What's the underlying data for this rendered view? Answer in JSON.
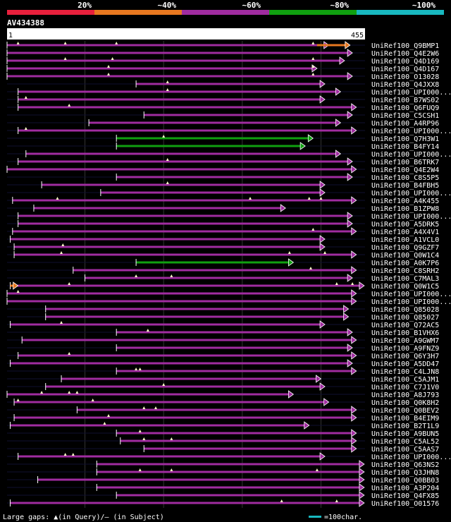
{
  "chart_data": {
    "type": "alignment-map",
    "query_name": "AV434388",
    "query_length": 455,
    "ruler": {
      "start_label": "1",
      "end_label": "455"
    },
    "identity_legend": [
      {
        "label": "20%",
        "color": "#e8203c"
      },
      {
        "label": "~40%",
        "color": "#e87820"
      },
      {
        "label": "~60%",
        "color": "#a02ca0"
      },
      {
        "label": "~80%",
        "color": "#10a010"
      },
      {
        "label": "~100%",
        "color": "#18b8c0"
      }
    ],
    "footer": {
      "gaps_text": "Large gaps: ▲(in Query)/– (in Subject)",
      "scale_text": "=100char.",
      "scale_color": "#18b8c0"
    },
    "hits": [
      {
        "name": "UniRef100_Q9BMP1",
        "start": 1,
        "end": 410,
        "color": "#a02ca0",
        "extra": {
          "start": 395,
          "end": 437,
          "color": "#e87820"
        },
        "marks": [
          15,
          75,
          140,
          390
        ]
      },
      {
        "name": "UniRef100_Q4E2W6",
        "start": 1,
        "end": 440,
        "color": "#a02ca0",
        "marks": []
      },
      {
        "name": "UniRef100_Q4D169",
        "start": 1,
        "end": 430,
        "color": "#a02ca0",
        "marks": [
          75,
          135,
          390
        ]
      },
      {
        "name": "UniRef100_Q4D167",
        "start": 1,
        "end": 395,
        "color": "#a02ca0",
        "marks": [
          130,
          390
        ]
      },
      {
        "name": "UniRef100_O13028",
        "start": 1,
        "end": 440,
        "color": "#a02ca0",
        "marks": [
          130,
          390
        ]
      },
      {
        "name": "UniRef100_Q4JXX8",
        "start": 165,
        "end": 405,
        "color": "#a02ca0",
        "marks": [
          205
        ]
      },
      {
        "name": "UniRef100_UPI000...",
        "start": 15,
        "end": 425,
        "color": "#a02ca0",
        "marks": [
          205
        ]
      },
      {
        "name": "UniRef100_B7WS02",
        "start": 15,
        "end": 405,
        "color": "#a02ca0",
        "marks": [
          25
        ]
      },
      {
        "name": "UniRef100_Q6FUQ9",
        "start": 15,
        "end": 445,
        "color": "#a02ca0",
        "marks": [
          80
        ]
      },
      {
        "name": "UniRef100_C5CSH1",
        "start": 175,
        "end": 440,
        "color": "#a02ca0",
        "marks": []
      },
      {
        "name": "UniRef100_A4RP96",
        "start": 105,
        "end": 425,
        "color": "#a02ca0",
        "marks": []
      },
      {
        "name": "UniRef100_UPI000...",
        "start": 15,
        "end": 445,
        "color": "#a02ca0",
        "marks": [
          25
        ]
      },
      {
        "name": "UniRef100_Q7H3W1",
        "start": 140,
        "end": 390,
        "color": "#10a010",
        "marks": [
          200
        ]
      },
      {
        "name": "UniRef100_B4FY14",
        "start": 140,
        "end": 380,
        "color": "#10a010",
        "marks": []
      },
      {
        "name": "UniRef100_UPI000...",
        "start": 25,
        "end": 425,
        "color": "#a02ca0",
        "marks": []
      },
      {
        "name": "UniRef100_B6TRK7",
        "start": 15,
        "end": 440,
        "color": "#a02ca0",
        "marks": [
          205
        ]
      },
      {
        "name": "UniRef100_Q4E2W4",
        "start": 1,
        "end": 445,
        "color": "#a02ca0",
        "marks": []
      },
      {
        "name": "UniRef100_C8S5P5",
        "start": 140,
        "end": 440,
        "color": "#a02ca0",
        "marks": []
      },
      {
        "name": "UniRef100_B4FBH5",
        "start": 45,
        "end": 405,
        "color": "#a02ca0",
        "marks": [
          205
        ]
      },
      {
        "name": "UniRef100_UPI000...",
        "start": 120,
        "end": 405,
        "color": "#a02ca0",
        "marks": []
      },
      {
        "name": "UniRef100_A4K455",
        "start": 8,
        "end": 445,
        "color": "#a02ca0",
        "marks": [
          65,
          310,
          385,
          400
        ]
      },
      {
        "name": "UniRef100_B1ZPW8",
        "start": 35,
        "end": 355,
        "color": "#a02ca0",
        "marks": []
      },
      {
        "name": "UniRef100_UPI000...",
        "start": 15,
        "end": 440,
        "color": "#a02ca0",
        "marks": []
      },
      {
        "name": "UniRef100_A5DRK5",
        "start": 15,
        "end": 440,
        "color": "#a02ca0",
        "marks": []
      },
      {
        "name": "UniRef100_A4X4V1",
        "start": 8,
        "end": 445,
        "color": "#a02ca0",
        "marks": [
          390
        ]
      },
      {
        "name": "UniRef100_A1VCL0",
        "start": 5,
        "end": 405,
        "color": "#a02ca0",
        "marks": []
      },
      {
        "name": "UniRef100_Q9GZF7",
        "start": 10,
        "end": 405,
        "color": "#a02ca0",
        "marks": [
          72
        ]
      },
      {
        "name": "UniRef100_Q0W1C4",
        "start": 10,
        "end": 445,
        "color": "#a02ca0",
        "marks": [
          70,
          360,
          405
        ]
      },
      {
        "name": "UniRef100_A0K7P6",
        "start": 165,
        "end": 365,
        "color": "#10a010",
        "marks": []
      },
      {
        "name": "UniRef100_C8SRH2",
        "start": 85,
        "end": 445,
        "color": "#a02ca0",
        "marks": [
          387
        ]
      },
      {
        "name": "UniRef100_C7MAL3",
        "start": 100,
        "end": 440,
        "color": "#a02ca0",
        "marks": [
          165,
          210
        ]
      },
      {
        "name": "UniRef100_Q0W1C5",
        "start": 5,
        "end": 455,
        "color": "#a02ca0",
        "extra": {
          "start": 5,
          "end": 15,
          "color": "#e87820"
        },
        "marks": [
          80,
          420,
          440
        ]
      },
      {
        "name": "UniRef100_UPI000...",
        "start": 1,
        "end": 445,
        "color": "#a02ca0",
        "marks": [
          15
        ]
      },
      {
        "name": "UniRef100_UPI000...",
        "start": 1,
        "end": 445,
        "color": "#a02ca0",
        "marks": []
      },
      {
        "name": "UniRef100_Q85028",
        "start": 50,
        "end": 435,
        "color": "#a02ca0",
        "marks": []
      },
      {
        "name": "UniRef100_Q85027",
        "start": 50,
        "end": 435,
        "color": "#a02ca0",
        "marks": []
      },
      {
        "name": "UniRef100_Q72AC5",
        "start": 5,
        "end": 405,
        "color": "#a02ca0",
        "marks": [
          70
        ]
      },
      {
        "name": "UniRef100_B1VHX6",
        "start": 140,
        "end": 440,
        "color": "#a02ca0",
        "marks": [
          180
        ]
      },
      {
        "name": "UniRef100_A9GWM7",
        "start": 20,
        "end": 445,
        "color": "#a02ca0",
        "marks": []
      },
      {
        "name": "UniRef100_A9FNZ9",
        "start": 140,
        "end": 440,
        "color": "#a02ca0",
        "marks": []
      },
      {
        "name": "UniRef100_Q6Y3H7",
        "start": 15,
        "end": 445,
        "color": "#a02ca0",
        "marks": [
          80
        ]
      },
      {
        "name": "UniRef100_A5DD47",
        "start": 5,
        "end": 440,
        "color": "#a02ca0",
        "marks": []
      },
      {
        "name": "UniRef100_C4LJN8",
        "start": 140,
        "end": 445,
        "color": "#a02ca0",
        "marks": [
          165,
          170
        ]
      },
      {
        "name": "UniRef100_C5AJM1",
        "start": 70,
        "end": 400,
        "color": "#a02ca0",
        "marks": []
      },
      {
        "name": "UniRef100_C7J1V0",
        "start": 50,
        "end": 405,
        "color": "#a02ca0",
        "marks": [
          200
        ]
      },
      {
        "name": "UniRef100_A8J793",
        "start": 1,
        "end": 365,
        "color": "#a02ca0",
        "marks": [
          45,
          80,
          90
        ]
      },
      {
        "name": "UniRef100_Q0K8H2",
        "start": 10,
        "end": 410,
        "color": "#a02ca0",
        "marks": [
          15,
          110
        ]
      },
      {
        "name": "UniRef100_Q0BEV2",
        "start": 90,
        "end": 445,
        "color": "#a02ca0",
        "marks": [
          175,
          190
        ]
      },
      {
        "name": "UniRef100_B4EIM9",
        "start": 10,
        "end": 445,
        "color": "#a02ca0",
        "marks": [
          130
        ]
      },
      {
        "name": "UniRef100_B2T1L9",
        "start": 5,
        "end": 385,
        "color": "#a02ca0",
        "marks": [
          125
        ]
      },
      {
        "name": "UniRef100_A9BUN5",
        "start": 140,
        "end": 445,
        "color": "#a02ca0",
        "marks": [
          170
        ]
      },
      {
        "name": "UniRef100_C5AL52",
        "start": 145,
        "end": 445,
        "color": "#a02ca0",
        "marks": [
          175,
          210
        ]
      },
      {
        "name": "UniRef100_C5AAS7",
        "start": 175,
        "end": 445,
        "color": "#a02ca0",
        "marks": []
      },
      {
        "name": "UniRef100_UPI000...",
        "start": 15,
        "end": 405,
        "color": "#a02ca0",
        "marks": [
          75,
          85
        ]
      },
      {
        "name": "UniRef100_Q63NS2",
        "start": 115,
        "end": 455,
        "color": "#a02ca0",
        "marks": []
      },
      {
        "name": "UniRef100_Q3JHN8",
        "start": 115,
        "end": 455,
        "color": "#a02ca0",
        "marks": [
          170,
          210,
          395
        ]
      },
      {
        "name": "UniRef100_Q0BB03",
        "start": 40,
        "end": 455,
        "color": "#a02ca0",
        "marks": []
      },
      {
        "name": "UniRef100_A3P204",
        "start": 115,
        "end": 455,
        "color": "#a02ca0",
        "marks": []
      },
      {
        "name": "UniRef100_Q4FX85",
        "start": 140,
        "end": 455,
        "color": "#a02ca0",
        "marks": []
      },
      {
        "name": "UniRef100_O01576",
        "start": 5,
        "end": 455,
        "color": "#a02ca0",
        "marks": [
          350,
          420
        ]
      }
    ]
  }
}
